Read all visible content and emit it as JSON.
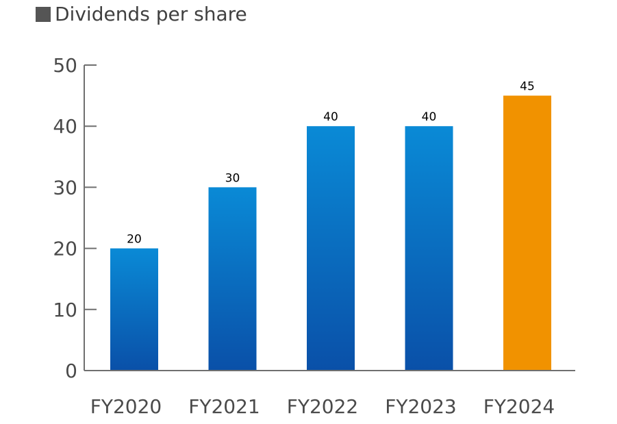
{
  "chart_data": {
    "type": "bar",
    "title": "Dividends per share",
    "categories": [
      "FY2020",
      "FY2021",
      "FY2022",
      "FY2023",
      "FY2024"
    ],
    "values": [
      20,
      30,
      40,
      40,
      45
    ],
    "data_labels": [
      "20",
      "30",
      "40",
      "40",
      "45"
    ],
    "yticks": [
      "0",
      "10",
      "20",
      "30",
      "40",
      "50"
    ],
    "ylim": [
      0,
      50
    ],
    "xlabel": "",
    "ylabel": "",
    "grid": false,
    "colors": {
      "bar_top": "#0a8ad6",
      "bar_bottom": "#0a50a8",
      "highlight": "#f19200",
      "axis": "#6f6f6f"
    },
    "highlight_index": 4
  }
}
